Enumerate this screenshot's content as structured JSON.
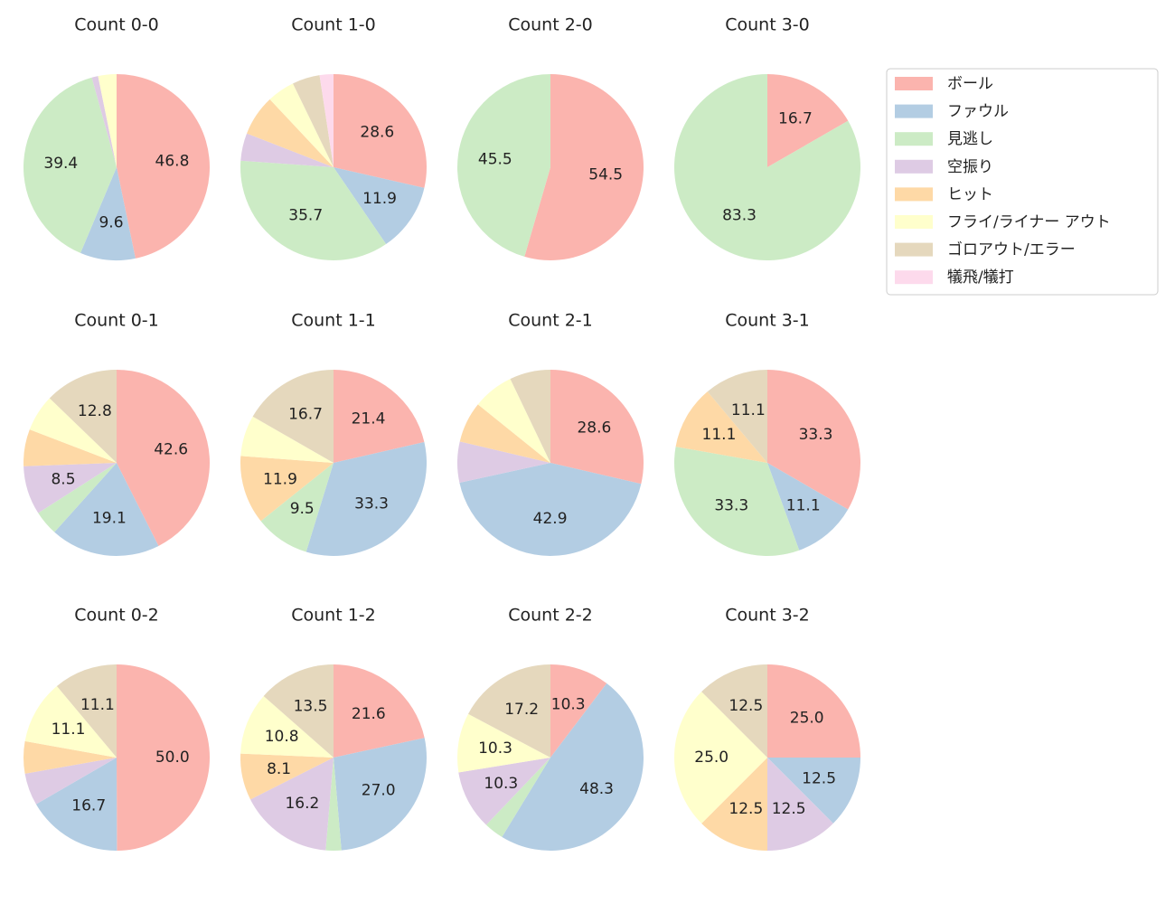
{
  "chart_data": {
    "type": "pie",
    "categories": [
      "ボール",
      "ファウル",
      "見逃し",
      "空振り",
      "ヒット",
      "フライ/ライナー アウト",
      "ゴロアウト/エラー",
      "犠飛/犠打"
    ],
    "colors": [
      "#fbb4ae",
      "#b3cde3",
      "#ccebc5",
      "#decbe4",
      "#fed9a6",
      "#ffffcc",
      "#e5d8bd",
      "#fddaec"
    ],
    "legend": "upper right",
    "pies": [
      {
        "title": "Count 0-0",
        "values": [
          46.8,
          9.6,
          39.4,
          1.1,
          0,
          3.2,
          0,
          0
        ],
        "value_labels": [
          "46.8",
          "9.6",
          "39.4",
          null,
          null,
          null,
          null,
          null
        ]
      },
      {
        "title": "Count 1-0",
        "values": [
          28.6,
          11.9,
          35.7,
          4.8,
          7.1,
          4.8,
          4.8,
          2.4
        ],
        "value_labels": [
          "28.6",
          "11.9",
          "35.7",
          null,
          null,
          null,
          null,
          null
        ]
      },
      {
        "title": "Count 2-0",
        "values": [
          54.5,
          0,
          45.5,
          0,
          0,
          0,
          0,
          0
        ],
        "value_labels": [
          "54.5",
          null,
          "45.5",
          null,
          null,
          null,
          null,
          null
        ]
      },
      {
        "title": "Count 3-0",
        "values": [
          16.7,
          0,
          83.3,
          0,
          0,
          0,
          0,
          0
        ],
        "value_labels": [
          "16.7",
          null,
          "83.3",
          null,
          null,
          null,
          null,
          null
        ]
      },
      {
        "title": "Count 0-1",
        "values": [
          42.6,
          19.1,
          4.3,
          8.5,
          6.4,
          6.4,
          12.8,
          0
        ],
        "value_labels": [
          "42.6",
          "19.1",
          null,
          "8.5",
          null,
          null,
          "12.8",
          null
        ]
      },
      {
        "title": "Count 1-1",
        "values": [
          21.4,
          33.3,
          9.5,
          0,
          11.9,
          7.1,
          16.7,
          0
        ],
        "value_labels": [
          "21.4",
          "33.3",
          "9.5",
          null,
          "11.9",
          null,
          "16.7",
          null
        ]
      },
      {
        "title": "Count 2-1",
        "values": [
          28.6,
          42.9,
          0,
          7.1,
          7.1,
          7.1,
          7.1,
          0
        ],
        "value_labels": [
          "28.6",
          "42.9",
          null,
          null,
          null,
          null,
          null,
          null
        ]
      },
      {
        "title": "Count 3-1",
        "values": [
          33.3,
          11.1,
          33.3,
          0,
          11.1,
          0,
          11.1,
          0
        ],
        "value_labels": [
          "33.3",
          "11.1",
          "33.3",
          null,
          "11.1",
          null,
          "11.1",
          null
        ]
      },
      {
        "title": "Count 0-2",
        "values": [
          50.0,
          16.7,
          0,
          5.6,
          5.6,
          11.1,
          11.1,
          0
        ],
        "value_labels": [
          "50.0",
          "16.7",
          null,
          null,
          null,
          "11.1",
          "11.1",
          null
        ]
      },
      {
        "title": "Count 1-2",
        "values": [
          21.6,
          27.0,
          2.7,
          16.2,
          8.1,
          10.8,
          13.5,
          0
        ],
        "value_labels": [
          "21.6",
          "27.0",
          null,
          "16.2",
          "8.1",
          "10.8",
          "13.5",
          null
        ]
      },
      {
        "title": "Count 2-2",
        "values": [
          10.3,
          48.3,
          3.4,
          10.3,
          0,
          10.3,
          17.2,
          0
        ],
        "value_labels": [
          "10.3",
          "48.3",
          null,
          "10.3",
          null,
          "10.3",
          "17.2",
          null
        ]
      },
      {
        "title": "Count 3-2",
        "values": [
          25.0,
          12.5,
          0,
          12.5,
          12.5,
          25.0,
          12.5,
          0
        ],
        "value_labels": [
          "25.0",
          "12.5",
          null,
          "12.5",
          "12.5",
          "25.0",
          "12.5",
          null
        ]
      }
    ]
  }
}
